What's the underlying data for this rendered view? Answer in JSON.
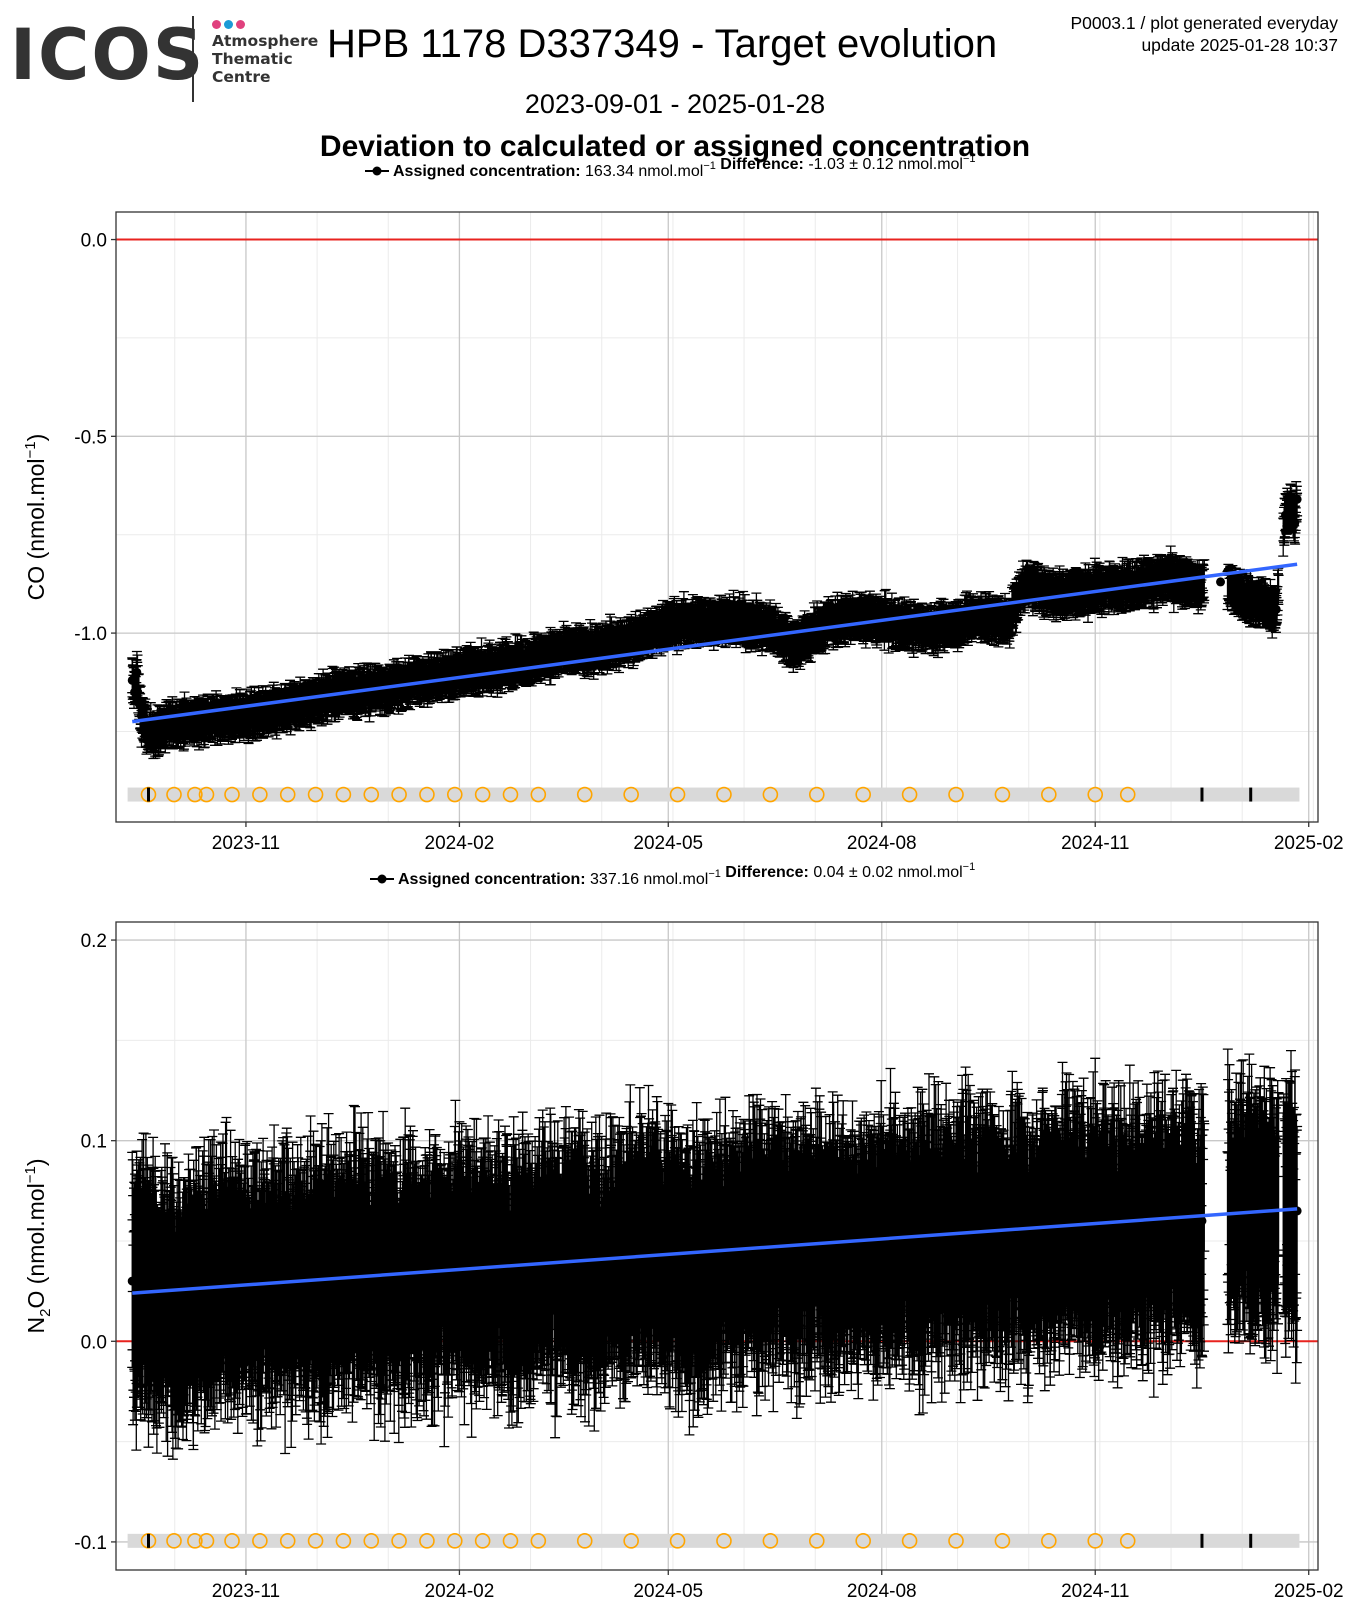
{
  "header": {
    "logo_text": "ICOS",
    "logo_lines": [
      "Atmosphere",
      "Thematic",
      "Centre"
    ],
    "logo_colors": [
      "#e0417e",
      "#1c9ad6",
      "#e0417e"
    ],
    "title": "HPB 1178 D337349 - Target evolution",
    "meta_line1": "P0003.1 / plot generated everyday",
    "meta_line2": "update  2025-01-28 10:37",
    "date_range": "2023-09-01 - 2025-01-28",
    "subtitle": "Deviation to calculated or assigned concentration"
  },
  "colors": {
    "reference_line": "#e8231f",
    "trend_line": "#3366ff",
    "points": "#000000",
    "calibration_markers": "#ffa500",
    "band": "#d9d9d9"
  },
  "chart_data": [
    {
      "type": "scatter",
      "legend": {
        "assigned_label": "Assigned concentration:",
        "assigned_value": "163.34 nmol.mol",
        "difference_label": "Difference:",
        "difference_value": "-1.03",
        "difference_pm": "0.12 nmol.mol"
      },
      "ylabel": "CO (nmol.mol",
      "ylabel_suffix": ")",
      "ylabel_exp": "−1",
      "x_range": [
        "2023-09-06",
        "2025-02-05"
      ],
      "ylim": [
        -1.48,
        0.07
      ],
      "y_ticks": [
        0.0,
        -0.5,
        -1.0
      ],
      "y_tick_labels": [
        "0.0",
        "-0.5",
        "-1.0"
      ],
      "x_ticks": [
        "2023-11-01",
        "2024-02-01",
        "2024-05-01",
        "2024-08-01",
        "2024-11-01",
        "2025-02-01"
      ],
      "x_tick_labels": [
        "2023-11",
        "2024-02",
        "2024-05",
        "2024-08",
        "2024-11",
        "2025-02"
      ],
      "reference_y": 0.0,
      "trend": {
        "x": [
          "2023-09-13",
          "2025-01-27"
        ],
        "y": [
          -1.225,
          -0.825
        ]
      },
      "series": [
        {
          "x": [
            "2023-09-13",
            "2023-09-14",
            "2023-09-15",
            "2023-09-16",
            "2023-09-17",
            "2023-09-20",
            "2023-10-01",
            "2023-10-15",
            "2023-11-01",
            "2023-11-15",
            "2023-12-01",
            "2023-12-15",
            "2024-01-01",
            "2024-01-15",
            "2024-02-01",
            "2024-02-15",
            "2024-03-01",
            "2024-03-15",
            "2024-04-01",
            "2024-04-15",
            "2024-05-01",
            "2024-05-15",
            "2024-06-01",
            "2024-06-15",
            "2024-06-25",
            "2024-07-10",
            "2024-07-25",
            "2024-08-10",
            "2024-08-25",
            "2024-09-10",
            "2024-09-25",
            "2024-10-01",
            "2024-10-15",
            "2024-11-01",
            "2024-11-15",
            "2024-12-01",
            "2024-12-15",
            "2024-12-25",
            "2025-01-02",
            "2025-01-10",
            "2025-01-18",
            "2025-01-22",
            "2025-01-24",
            "2025-01-26",
            "2025-01-27"
          ],
          "y": [
            -1.12,
            -1.15,
            -1.1,
            -1.18,
            -1.21,
            -1.26,
            -1.23,
            -1.22,
            -1.21,
            -1.2,
            -1.17,
            -1.15,
            -1.14,
            -1.12,
            -1.1,
            -1.09,
            -1.07,
            -1.05,
            -1.04,
            -1.02,
            -0.98,
            -0.97,
            -0.97,
            -0.99,
            -1.03,
            -0.97,
            -0.96,
            -0.98,
            -0.99,
            -0.96,
            -0.97,
            -0.88,
            -0.9,
            -0.89,
            -0.88,
            -0.86,
            -0.88,
            -0.87,
            -0.9,
            -0.92,
            -0.94,
            -0.7,
            -0.68,
            -0.72,
            -0.66
          ]
        }
      ],
      "error_half_width": 0.04,
      "calibration_dates": [
        "2023-09-20",
        "2023-10-01",
        "2023-10-10",
        "2023-10-15",
        "2023-10-26",
        "2023-11-07",
        "2023-11-19",
        "2023-12-01",
        "2023-12-13",
        "2023-12-25",
        "2024-01-06",
        "2024-01-18",
        "2024-01-30",
        "2024-02-11",
        "2024-02-23",
        "2024-03-06",
        "2024-03-26",
        "2024-04-15",
        "2024-05-05",
        "2024-05-25",
        "2024-06-14",
        "2024-07-04",
        "2024-07-24",
        "2024-08-13",
        "2024-09-02",
        "2024-09-22",
        "2024-10-12",
        "2024-11-01",
        "2024-11-15"
      ],
      "event_dates": [
        "2023-09-20",
        "2024-12-17",
        "2025-01-07"
      ]
    },
    {
      "type": "scatter",
      "legend": {
        "assigned_label": "Assigned concentration:",
        "assigned_value": "337.16 nmol.mol",
        "difference_label": "Difference:",
        "difference_value": "0.04",
        "difference_pm": "0.02 nmol.mol"
      },
      "ylabel": "N2O (nmol.mol",
      "ylabel_suffix": ")",
      "ylabel_exp": "−1",
      "x_range": [
        "2023-09-06",
        "2025-02-05"
      ],
      "ylim": [
        -0.114,
        0.209
      ],
      "y_ticks": [
        0.2,
        0.1,
        0.0,
        -0.1
      ],
      "y_tick_labels": [
        "0.2",
        "0.1",
        "0.0",
        "-0.1"
      ],
      "x_ticks": [
        "2023-11-01",
        "2024-02-01",
        "2024-05-01",
        "2024-08-01",
        "2024-11-01",
        "2025-02-01"
      ],
      "x_tick_labels": [
        "2023-11",
        "2024-02",
        "2024-05",
        "2024-08",
        "2024-11",
        "2025-02"
      ],
      "reference_y": 0.0,
      "trend": {
        "x": [
          "2023-09-13",
          "2025-01-27"
        ],
        "y": [
          0.024,
          0.066
        ]
      },
      "series": [
        {
          "x": [
            "2023-09-13",
            "2023-10-01",
            "2023-10-20",
            "2023-11-10",
            "2023-12-01",
            "2023-12-20",
            "2024-01-10",
            "2024-02-01",
            "2024-02-20",
            "2024-03-10",
            "2024-04-01",
            "2024-04-20",
            "2024-05-10",
            "2024-06-01",
            "2024-06-20",
            "2024-07-10",
            "2024-08-01",
            "2024-08-20",
            "2024-09-10",
            "2024-10-01",
            "2024-10-20",
            "2024-11-10",
            "2024-12-01",
            "2024-12-17",
            "2025-01-03",
            "2025-01-15",
            "2025-01-27"
          ],
          "y": [
            0.03,
            0.02,
            0.03,
            0.03,
            0.03,
            0.035,
            0.03,
            0.04,
            0.035,
            0.04,
            0.04,
            0.045,
            0.04,
            0.045,
            0.05,
            0.045,
            0.05,
            0.05,
            0.055,
            0.05,
            0.06,
            0.055,
            0.06,
            0.06,
            0.07,
            0.06,
            0.065
          ]
        }
      ],
      "error_half_width": 0.045,
      "calibration_dates": [
        "2023-09-20",
        "2023-10-01",
        "2023-10-10",
        "2023-10-15",
        "2023-10-26",
        "2023-11-07",
        "2023-11-19",
        "2023-12-01",
        "2023-12-13",
        "2023-12-25",
        "2024-01-06",
        "2024-01-18",
        "2024-01-30",
        "2024-02-11",
        "2024-02-23",
        "2024-03-06",
        "2024-03-26",
        "2024-04-15",
        "2024-05-05",
        "2024-05-25",
        "2024-06-14",
        "2024-07-04",
        "2024-07-24",
        "2024-08-13",
        "2024-09-02",
        "2024-09-22",
        "2024-10-12",
        "2024-11-01",
        "2024-11-15"
      ],
      "event_dates": [
        "2023-09-20",
        "2024-12-17",
        "2025-01-07"
      ]
    }
  ]
}
